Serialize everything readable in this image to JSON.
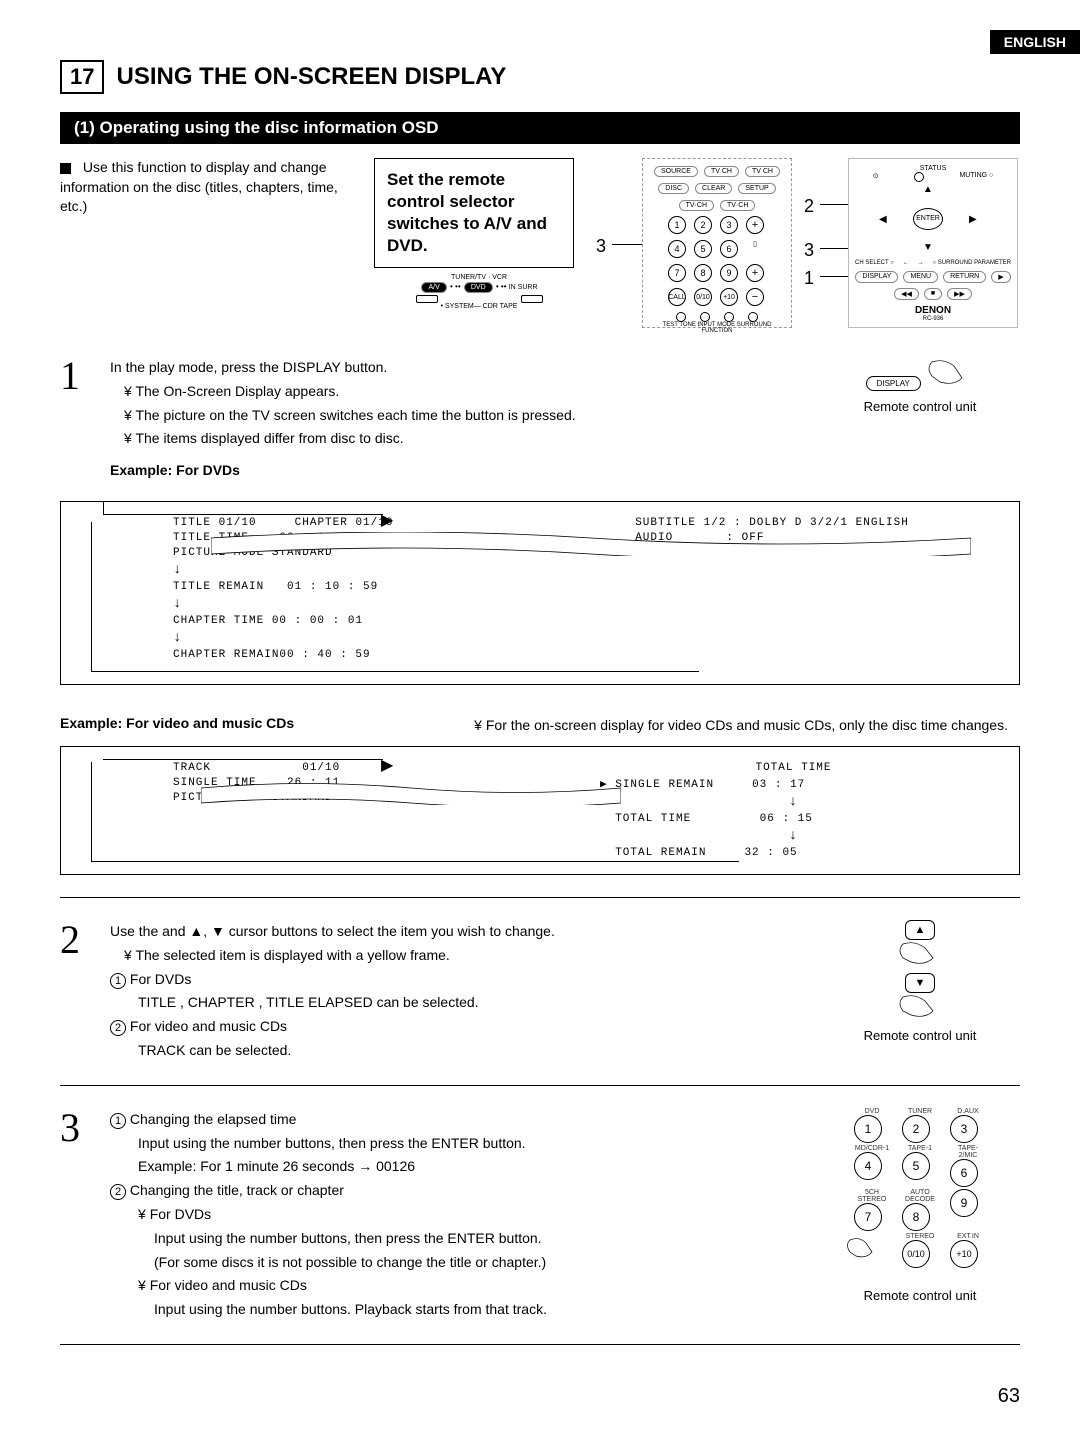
{
  "lang_tab": "ENGLISH",
  "section_number": "17",
  "section_title": "USING THE ON-SCREEN DISPLAY",
  "subsection_title": "(1) Operating using the disc information OSD",
  "intro_text": "Use this function to display and change information on the disc (titles, chapters, time, etc.)",
  "set_box": "Set the remote control selector switches to A/V and DVD.",
  "switch_left": "A/V",
  "switch_right": "DVD",
  "switch_hint1": "TUNER/TV · VCR",
  "switch_hint2": "• SYSTEM— CDR TAPE",
  "callout_1": "1",
  "callout_2": "2",
  "callout_3l": "3",
  "callout_3r": "3",
  "step1_line1": "In the play mode, press the DISPLAY button.",
  "step1_b1": "The On-Screen Display appears.",
  "step1_b2": "The picture on the TV screen switches each time the button is pressed.",
  "step1_b3": "The items displayed differ from disc to disc.",
  "example_dvd": "Example: For DVDs",
  "remote_caption": "Remote control unit",
  "dvd_osd": {
    "title": "TITLE 01/10",
    "chapter": "CHAPTER 01/10",
    "title_time_label": "TITLE TIME",
    "title_time": "00 : 00 : 01",
    "picture_mode_label": "PICTURE MODE",
    "picture_mode": "STANDARD",
    "title_remain_label": "TITLE REMAIN",
    "title_remain": "01 : 10 : 59",
    "chapter_time_label": "CHAPTER TIME",
    "chapter_time": "00 : 00 : 01",
    "chapter_remain_label": "CHAPTER REMAIN",
    "chapter_remain": "00 : 40 : 59",
    "subtitle": "SUBTITLE 1/2 : DOLBY D 3/2/1 ENGLISH",
    "audio_label": "AUDIO",
    "audio": ": OFF"
  },
  "example_cd": "Example: For video and music CDs",
  "cd_note": "For the on-screen display for video CDs and music CDs, only the disc time changes.",
  "cd_osd": {
    "track_label": "TRACK",
    "track": "01/10",
    "single_time_label": "SINGLE TIME",
    "single_time": "26 : 11",
    "picture_mode_label": "PICTURE MODE",
    "picture_mode": "STANDARD",
    "total_time_top": "TOTAL TIME",
    "single_remain_label": "SINGLE REMAIN",
    "single_remain": "03 : 17",
    "total_time_label": "TOTAL TIME",
    "total_time": "06 : 15",
    "total_remain_label": "TOTAL REMAIN",
    "total_remain": "32 : 05"
  },
  "step2_line1": "Use the and ▲, ▼ cursor buttons to select the item you wish to change.",
  "step2_b1": "The selected item is displayed with a yellow frame.",
  "step2_c1_label": "For DVDs",
  "step2_c1_text": "TITLE , CHAPTER , TITLE ELAPSED  can be selected.",
  "step2_c2_label": "For video and music CDs",
  "step2_c2_text": "TRACK  can be selected.",
  "step3_c1_label": "Changing the elapsed time",
  "step3_c1_t1": "Input using the number buttons, then press the ENTER button.",
  "step3_c1_t2": "Example:  For 1 minute 26 seconds → 00126",
  "step3_c2_label": "Changing the title, track or chapter",
  "step3_c2_b1": "For DVDs",
  "step3_c2_b1_t1": "Input using the number buttons, then press the ENTER button.",
  "step3_c2_b1_t2": "(For some discs it is not possible to change the title or chapter.)",
  "step3_c2_b2": "For video and music CDs",
  "step3_c2_b2_t1": "Input using the number buttons. Playback starts from that track.",
  "keypad": [
    "1",
    "2",
    "3",
    "4",
    "5",
    "6",
    "7",
    "8",
    "9",
    "0/10",
    "+10"
  ],
  "keypad_labels": [
    "DVD",
    "TUNER",
    "D.AUX",
    "MD/CDR-1",
    "TAPE-1",
    "TAPE-2/MIC",
    "5CH STEREO",
    "AUTO DECODE",
    "",
    "STEREO",
    "EXT.IN"
  ],
  "denon": "DENON",
  "denon_model": "RC-936",
  "display_btn": "DISPLAY",
  "page_number": "63"
}
